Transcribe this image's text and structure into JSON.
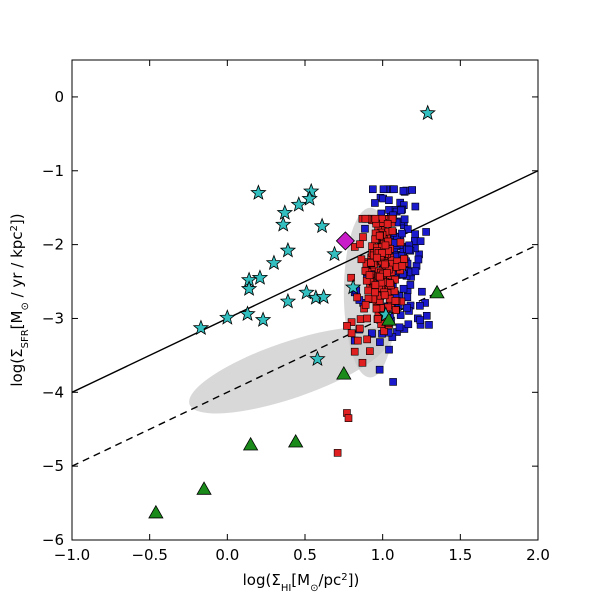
{
  "chart_data": {
    "type": "scatter",
    "title": "",
    "xlabel": "log(Σ_HI[M_⊙/pc²])",
    "ylabel": "log(Σ_SFR[M_⊙ / yr / kpc²])",
    "xlabel_parts": {
      "pre": "log(Σ",
      "sub": "HI",
      "post": "[M",
      "sun": "⊙",
      "end": "/pc",
      "sup": "2",
      "close": "])"
    },
    "ylabel_parts": {
      "pre": "log(Σ",
      "sub": "SFR",
      "post": "[M",
      "sun": "⊙",
      "mid": " / yr / kpc",
      "sup": "2",
      "close": "])"
    },
    "xlim": [
      -1.0,
      2.0
    ],
    "ylim": [
      -6,
      0.5
    ],
    "xticks": [
      -1.0,
      -0.5,
      0.0,
      0.5,
      1.0,
      1.5,
      2.0
    ],
    "xtick_labels": [
      "−1.0",
      "−0.5",
      "0.0",
      "0.5",
      "1.0",
      "1.5",
      "2.0"
    ],
    "yticks": [
      -6,
      -5,
      -4,
      -3,
      -2,
      -1,
      0
    ],
    "ytick_labels": [
      "−6",
      "−5",
      "−4",
      "−3",
      "−2",
      "−1",
      "0"
    ],
    "grid": false,
    "lines": [
      {
        "style": "solid",
        "color": "#000000",
        "x": [
          -1.0,
          2.0
        ],
        "y": [
          -4.0,
          -1.0
        ]
      },
      {
        "style": "dashed",
        "color": "#000000",
        "x": [
          -1.0,
          2.0
        ],
        "y": [
          -5.0,
          -2.0
        ]
      }
    ],
    "ellipses": [
      {
        "cx": 0.92,
        "cy": -2.65,
        "rx": 0.17,
        "ry": 1.15,
        "color": "#c8c8c8"
      },
      {
        "cx": 0.4,
        "cy": -3.7,
        "rx": 0.68,
        "ry": 0.38,
        "color": "#c8c8c8",
        "axis_slope": 0.72
      }
    ],
    "series": [
      {
        "marker": "star",
        "color": "#33bfbf",
        "points": [
          [
            1.29,
            -0.22
          ],
          [
            0.2,
            -1.3
          ],
          [
            0.54,
            -1.28
          ],
          [
            0.53,
            -1.38
          ],
          [
            0.46,
            -1.46
          ],
          [
            0.37,
            -1.57
          ],
          [
            0.36,
            -1.73
          ],
          [
            0.61,
            -1.75
          ],
          [
            0.69,
            -2.13
          ],
          [
            0.39,
            -2.08
          ],
          [
            0.3,
            -2.25
          ],
          [
            0.21,
            -2.45
          ],
          [
            0.14,
            -2.48
          ],
          [
            0.14,
            -2.6
          ],
          [
            0.51,
            -2.65
          ],
          [
            0.57,
            -2.72
          ],
          [
            0.62,
            -2.71
          ],
          [
            0.39,
            -2.77
          ],
          [
            0.81,
            -2.58
          ],
          [
            0.13,
            -2.94
          ],
          [
            0.0,
            -2.99
          ],
          [
            0.23,
            -3.02
          ],
          [
            -0.17,
            -3.13
          ],
          [
            0.58,
            -3.55
          ],
          [
            1.02,
            -2.95
          ]
        ]
      },
      {
        "marker": "triangle",
        "color": "#1a8a1a",
        "points": [
          [
            1.35,
            -2.65
          ],
          [
            1.04,
            -3.02
          ],
          [
            0.75,
            -3.75
          ],
          [
            0.44,
            -4.67
          ],
          [
            0.15,
            -4.71
          ],
          [
            -0.15,
            -5.31
          ],
          [
            -0.46,
            -5.63
          ]
        ]
      },
      {
        "marker": "diamond",
        "color": "#c71cc7",
        "points": [
          [
            0.76,
            -1.95
          ]
        ]
      }
    ]
  }
}
